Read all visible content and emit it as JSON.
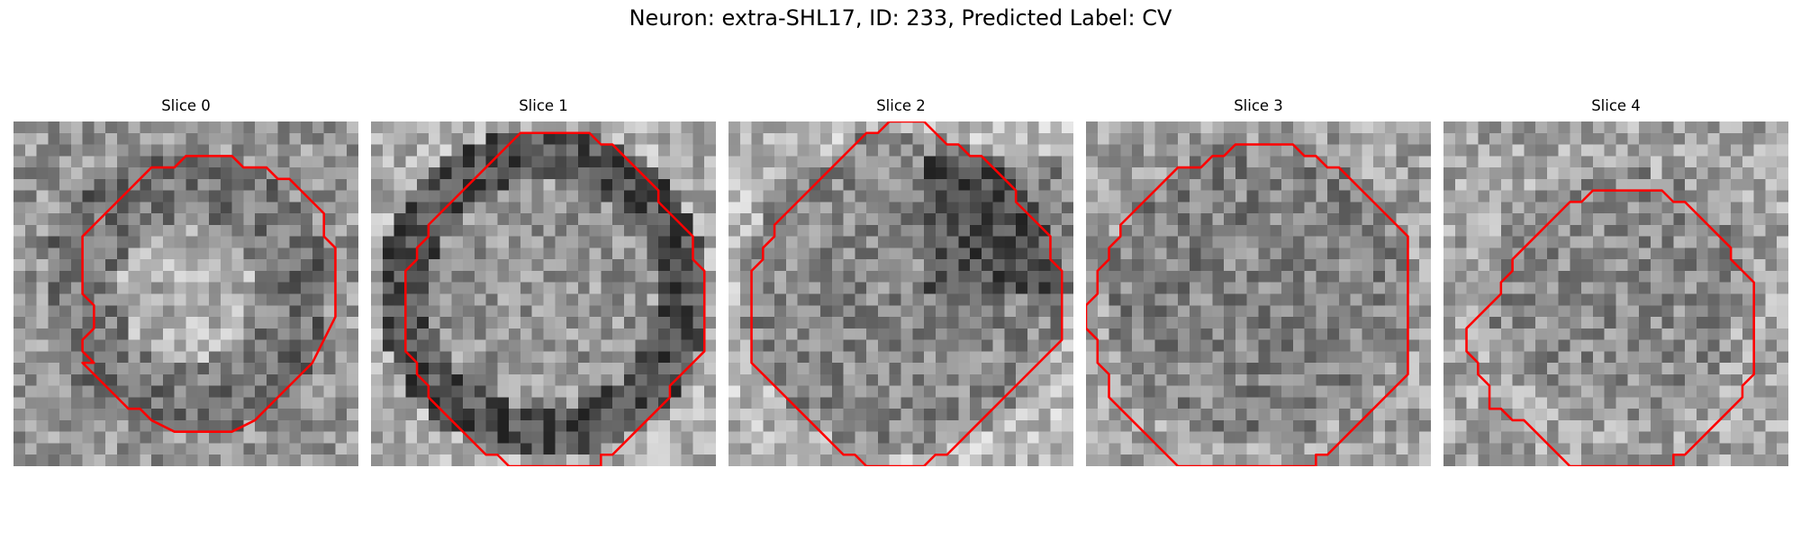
{
  "figure": {
    "title": "Neuron: extra-SHL17, ID: 233, Predicted Label: CV"
  },
  "colors": {
    "contour": "#ff0000",
    "background": "#ffffff"
  },
  "grid": {
    "pixels_per_side": 30
  },
  "slices": [
    {
      "title": "Slice 0",
      "contour": [
        [
          15,
          3
        ],
        [
          19,
          3
        ],
        [
          20,
          4
        ],
        [
          22,
          4
        ],
        [
          23,
          5
        ],
        [
          24,
          5
        ],
        [
          25,
          6
        ],
        [
          26,
          7
        ],
        [
          27,
          8
        ],
        [
          27,
          10
        ],
        [
          28,
          11
        ],
        [
          28,
          15
        ],
        [
          28,
          17
        ],
        [
          27,
          19
        ],
        [
          26,
          21
        ],
        [
          25,
          22
        ],
        [
          24,
          23
        ],
        [
          23,
          24
        ],
        [
          22,
          25
        ],
        [
          21,
          26
        ],
        [
          19,
          27
        ],
        [
          17,
          27
        ],
        [
          15,
          27
        ],
        [
          14,
          27
        ],
        [
          12,
          26
        ],
        [
          11,
          25
        ],
        [
          10,
          25
        ],
        [
          9,
          24
        ],
        [
          8,
          23
        ],
        [
          7,
          22
        ],
        [
          6,
          21
        ],
        [
          7,
          21
        ],
        [
          6,
          20
        ],
        [
          6,
          19
        ],
        [
          7,
          18
        ],
        [
          7,
          16
        ],
        [
          6,
          15
        ],
        [
          6,
          11
        ],
        [
          6,
          10
        ],
        [
          7,
          9
        ],
        [
          8,
          8
        ],
        [
          9,
          7
        ],
        [
          10,
          6
        ],
        [
          11,
          5
        ],
        [
          12,
          4
        ],
        [
          14,
          4
        ]
      ],
      "shade": "dark-ring",
      "seed": 11
    },
    {
      "title": "Slice 1",
      "contour": [
        [
          13,
          1
        ],
        [
          19,
          1
        ],
        [
          20,
          2
        ],
        [
          21,
          2
        ],
        [
          22,
          3
        ],
        [
          23,
          4
        ],
        [
          24,
          5
        ],
        [
          25,
          6
        ],
        [
          25,
          7
        ],
        [
          26,
          8
        ],
        [
          27,
          9
        ],
        [
          28,
          10
        ],
        [
          28,
          12
        ],
        [
          29,
          13
        ],
        [
          29,
          20
        ],
        [
          28,
          21
        ],
        [
          27,
          22
        ],
        [
          26,
          23
        ],
        [
          26,
          24
        ],
        [
          25,
          25
        ],
        [
          24,
          26
        ],
        [
          23,
          27
        ],
        [
          22,
          28
        ],
        [
          21,
          29
        ],
        [
          20,
          29
        ],
        [
          20,
          30
        ],
        [
          12,
          30
        ],
        [
          11,
          29
        ],
        [
          10,
          29
        ],
        [
          9,
          28
        ],
        [
          8,
          27
        ],
        [
          7,
          26
        ],
        [
          6,
          25
        ],
        [
          5,
          24
        ],
        [
          5,
          23
        ],
        [
          4,
          22
        ],
        [
          4,
          21
        ],
        [
          3,
          20
        ],
        [
          3,
          19
        ],
        [
          3,
          13
        ],
        [
          4,
          12
        ],
        [
          4,
          11
        ],
        [
          5,
          10
        ],
        [
          5,
          9
        ],
        [
          6,
          8
        ],
        [
          7,
          7
        ],
        [
          8,
          6
        ],
        [
          9,
          5
        ],
        [
          10,
          4
        ],
        [
          11,
          3
        ],
        [
          12,
          2
        ]
      ],
      "shade": "ring",
      "seed": 23
    },
    {
      "title": "Slice 2",
      "contour": [
        [
          14,
          0
        ],
        [
          17,
          0
        ],
        [
          18,
          1
        ],
        [
          19,
          2
        ],
        [
          20,
          2
        ],
        [
          21,
          3
        ],
        [
          22,
          3
        ],
        [
          23,
          4
        ],
        [
          24,
          5
        ],
        [
          25,
          6
        ],
        [
          25,
          7
        ],
        [
          26,
          8
        ],
        [
          27,
          9
        ],
        [
          28,
          10
        ],
        [
          28,
          12
        ],
        [
          29,
          13
        ],
        [
          29,
          19
        ],
        [
          28,
          20
        ],
        [
          27,
          21
        ],
        [
          26,
          22
        ],
        [
          25,
          23
        ],
        [
          24,
          24
        ],
        [
          23,
          25
        ],
        [
          22,
          26
        ],
        [
          21,
          27
        ],
        [
          20,
          28
        ],
        [
          19,
          29
        ],
        [
          18,
          29
        ],
        [
          17,
          30
        ],
        [
          12,
          30
        ],
        [
          11,
          29
        ],
        [
          10,
          29
        ],
        [
          9,
          28
        ],
        [
          8,
          27
        ],
        [
          7,
          26
        ],
        [
          6,
          25
        ],
        [
          5,
          24
        ],
        [
          4,
          23
        ],
        [
          3,
          22
        ],
        [
          2,
          21
        ],
        [
          2,
          13
        ],
        [
          3,
          12
        ],
        [
          3,
          11
        ],
        [
          4,
          10
        ],
        [
          4,
          9
        ],
        [
          5,
          8
        ],
        [
          6,
          7
        ],
        [
          7,
          6
        ],
        [
          8,
          5
        ],
        [
          9,
          4
        ],
        [
          10,
          3
        ],
        [
          11,
          2
        ],
        [
          12,
          1
        ],
        [
          13,
          1
        ]
      ],
      "shade": "dark-right",
      "seed": 37
    },
    {
      "title": "Slice 3",
      "contour": [
        [
          13,
          2
        ],
        [
          18,
          2
        ],
        [
          19,
          3
        ],
        [
          20,
          3
        ],
        [
          21,
          4
        ],
        [
          22,
          4
        ],
        [
          23,
          5
        ],
        [
          24,
          6
        ],
        [
          25,
          7
        ],
        [
          26,
          8
        ],
        [
          27,
          9
        ],
        [
          28,
          10
        ],
        [
          28,
          22
        ],
        [
          27,
          23
        ],
        [
          26,
          24
        ],
        [
          25,
          25
        ],
        [
          24,
          26
        ],
        [
          23,
          27
        ],
        [
          22,
          28
        ],
        [
          21,
          29
        ],
        [
          20,
          29
        ],
        [
          20,
          30
        ],
        [
          8,
          30
        ],
        [
          7,
          29
        ],
        [
          6,
          28
        ],
        [
          5,
          27
        ],
        [
          4,
          26
        ],
        [
          3,
          25
        ],
        [
          2,
          24
        ],
        [
          2,
          22
        ],
        [
          1,
          21
        ],
        [
          1,
          19
        ],
        [
          0,
          18
        ],
        [
          0,
          16
        ],
        [
          1,
          15
        ],
        [
          1,
          13
        ],
        [
          2,
          12
        ],
        [
          2,
          11
        ],
        [
          3,
          10
        ],
        [
          3,
          9
        ],
        [
          4,
          8
        ],
        [
          5,
          7
        ],
        [
          6,
          6
        ],
        [
          7,
          5
        ],
        [
          8,
          4
        ],
        [
          10,
          4
        ],
        [
          11,
          3
        ],
        [
          12,
          3
        ]
      ],
      "shade": "noise",
      "seed": 51
    },
    {
      "title": "Slice 4",
      "contour": [
        [
          13,
          6
        ],
        [
          19,
          6
        ],
        [
          20,
          7
        ],
        [
          21,
          7
        ],
        [
          22,
          8
        ],
        [
          23,
          9
        ],
        [
          24,
          10
        ],
        [
          25,
          11
        ],
        [
          25,
          12
        ],
        [
          26,
          13
        ],
        [
          27,
          14
        ],
        [
          27,
          16
        ],
        [
          27,
          22
        ],
        [
          26,
          23
        ],
        [
          26,
          24
        ],
        [
          25,
          25
        ],
        [
          24,
          26
        ],
        [
          23,
          27
        ],
        [
          22,
          28
        ],
        [
          21,
          29
        ],
        [
          20,
          29
        ],
        [
          20,
          30
        ],
        [
          11,
          30
        ],
        [
          10,
          29
        ],
        [
          9,
          28
        ],
        [
          8,
          27
        ],
        [
          7,
          26
        ],
        [
          6,
          26
        ],
        [
          5,
          25
        ],
        [
          4,
          25
        ],
        [
          4,
          23
        ],
        [
          3,
          22
        ],
        [
          3,
          21
        ],
        [
          2,
          20
        ],
        [
          2,
          18
        ],
        [
          3,
          17
        ],
        [
          4,
          16
        ],
        [
          5,
          15
        ],
        [
          5,
          14
        ],
        [
          6,
          13
        ],
        [
          6,
          12
        ],
        [
          7,
          11
        ],
        [
          8,
          10
        ],
        [
          9,
          9
        ],
        [
          10,
          8
        ],
        [
          11,
          7
        ],
        [
          12,
          7
        ]
      ],
      "shade": "light",
      "seed": 67
    }
  ]
}
